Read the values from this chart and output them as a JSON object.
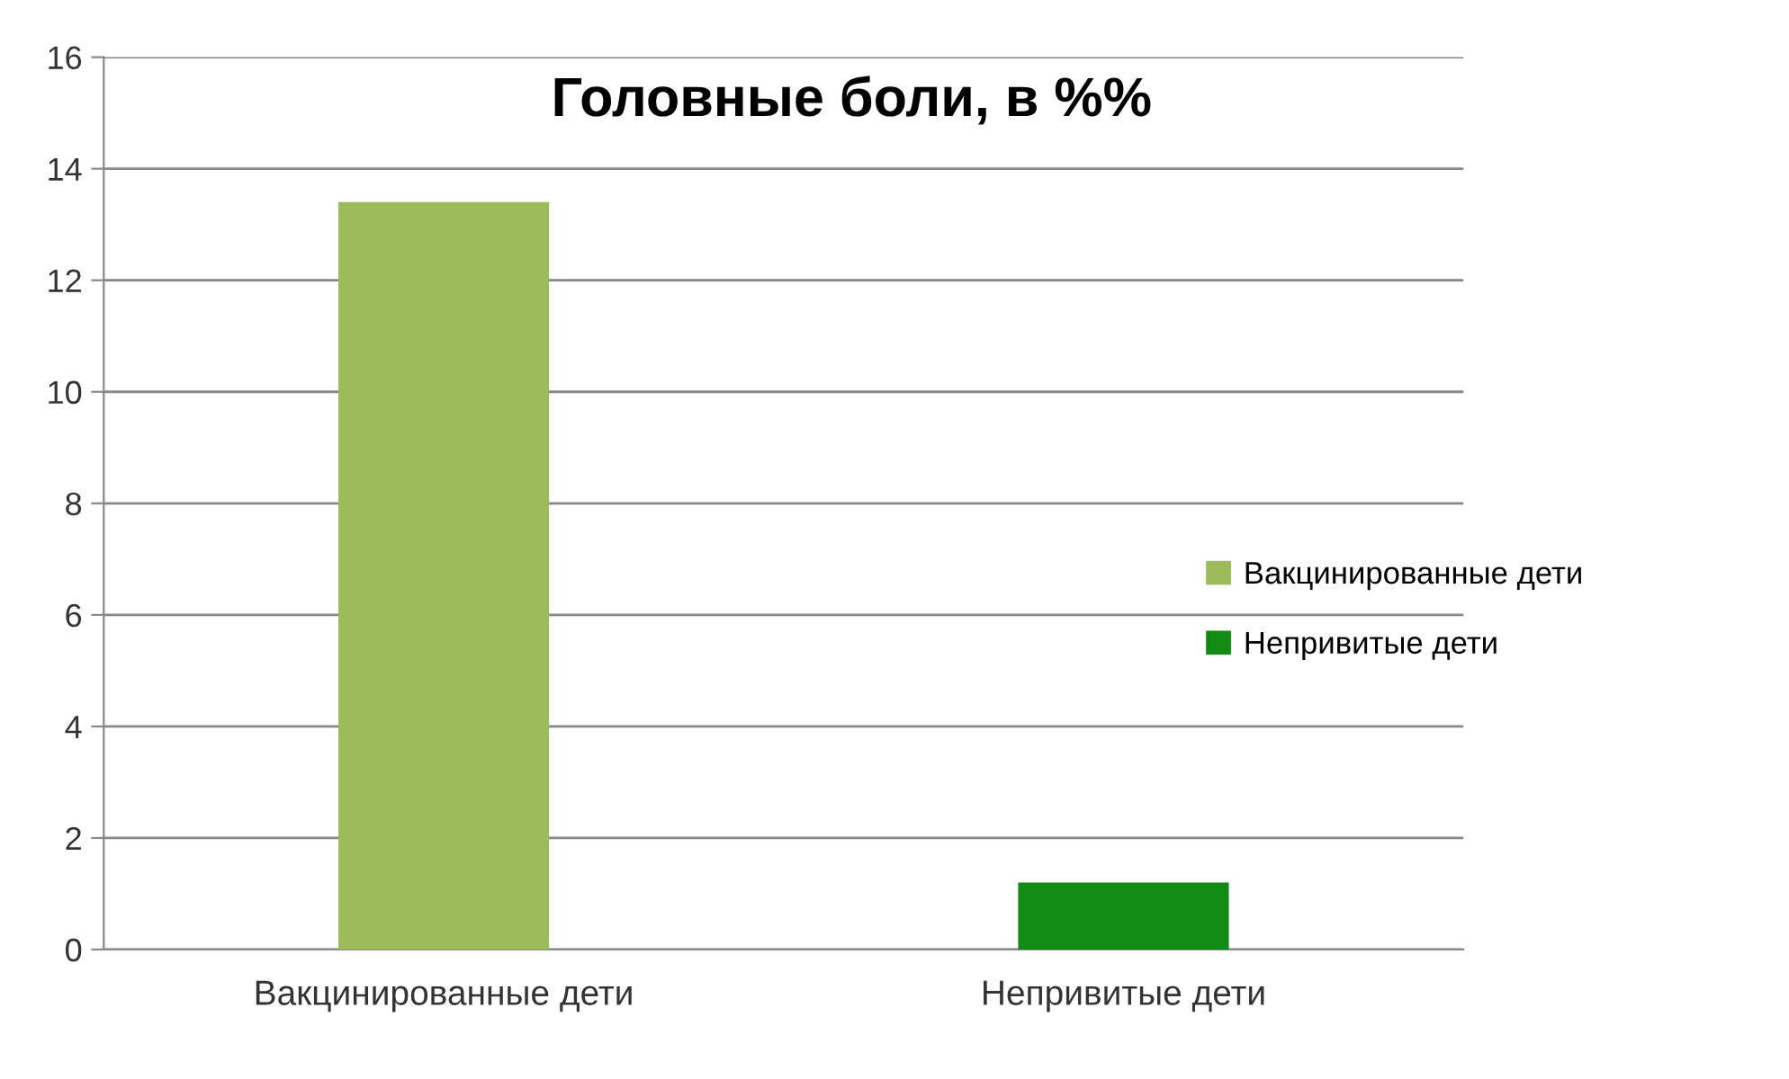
{
  "chart_data": {
    "type": "bar",
    "title": "Головные боли, в %%",
    "categories": [
      "Вакцинированные дети",
      "Непривитые дети"
    ],
    "series": [
      {
        "name": "Вакцинированные дети",
        "color": "#9bbb59",
        "values": [
          13.4,
          null
        ]
      },
      {
        "name": "Непривитые дети",
        "color": "#138a13",
        "values": [
          null,
          1.2
        ]
      }
    ],
    "ylim": [
      0,
      16
    ],
    "yticks": [
      0,
      2,
      4,
      6,
      8,
      10,
      12,
      14,
      16
    ],
    "grid": "y",
    "legend": "right"
  }
}
